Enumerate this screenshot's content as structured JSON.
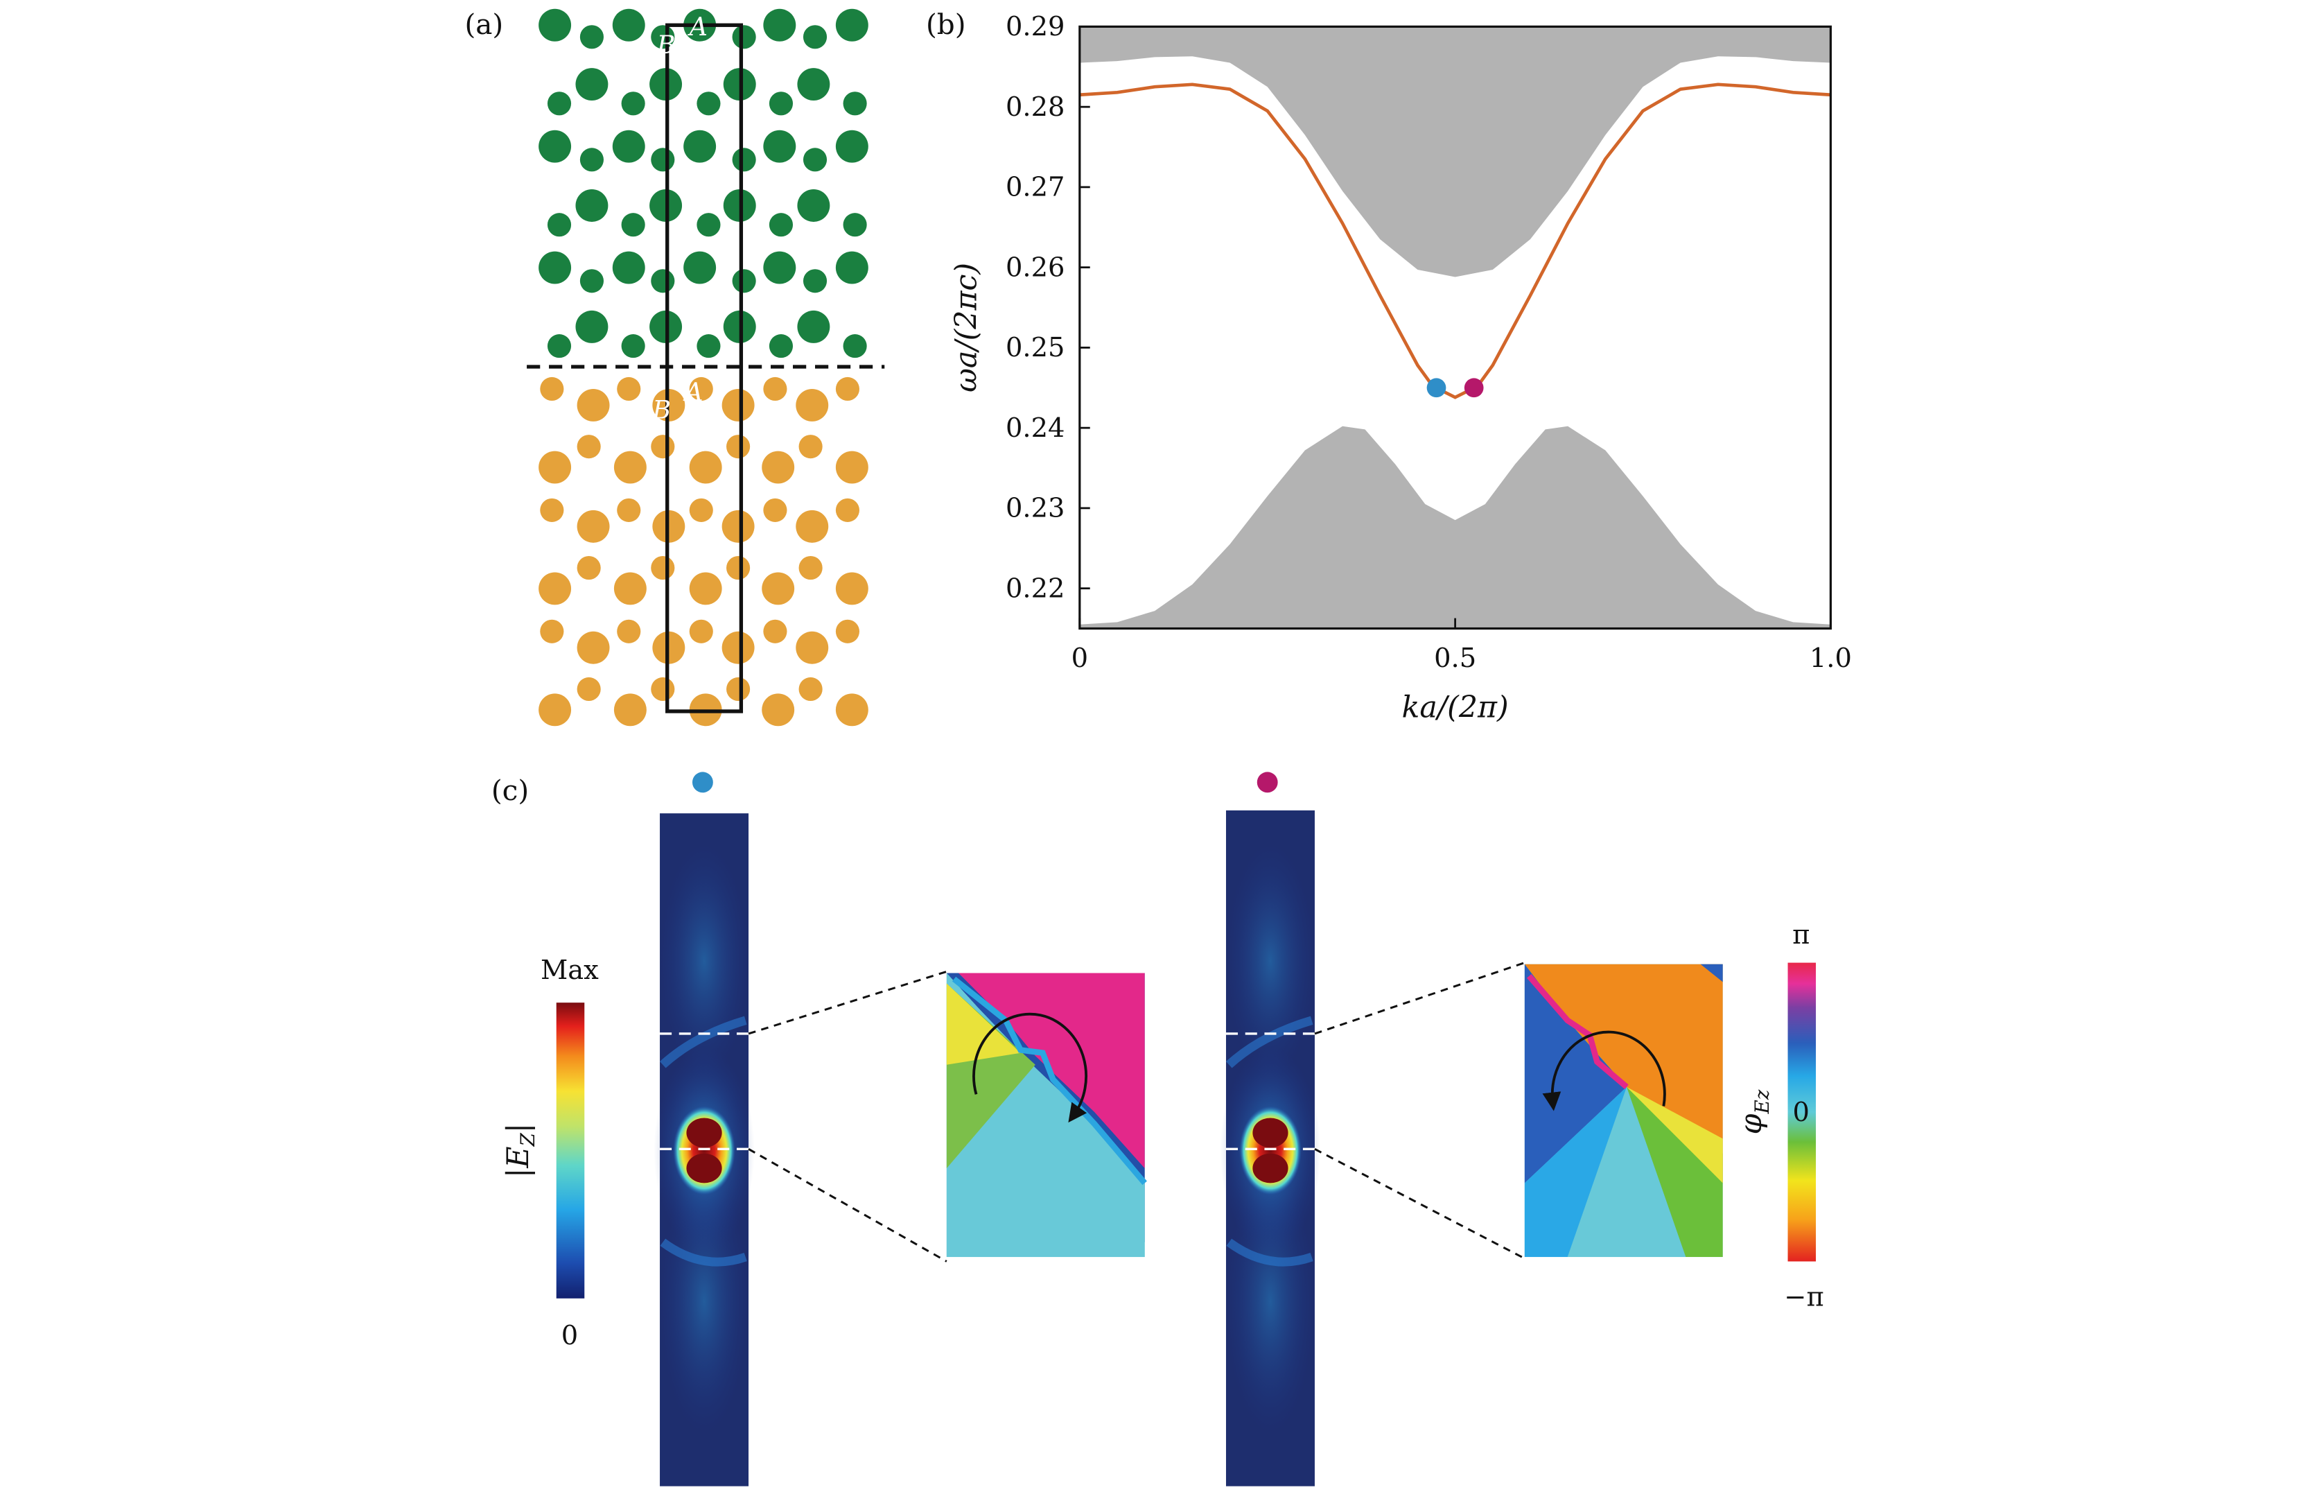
{
  "panel_labels": {
    "a": "(a)",
    "b": "(b)",
    "c": "(c)"
  },
  "panel_a": {
    "site_label_a": "A",
    "site_label_b": "B",
    "upper_color": "#1a8040",
    "lower_color": "#e5a23a"
  },
  "chart_data": {
    "type": "line",
    "title": "",
    "xlabel": "ka/(2π)",
    "ylabel": "ωa/(2πc)",
    "xlim": [
      0,
      1
    ],
    "ylim": [
      0.215,
      0.29
    ],
    "xticks": [
      {
        "value": 0,
        "label": "0"
      },
      {
        "value": 0.5,
        "label": "0.5"
      },
      {
        "value": 1.0,
        "label": "1.0"
      }
    ],
    "yticks": [
      {
        "value": 0.22,
        "label": "0.22"
      },
      {
        "value": 0.23,
        "label": "0.23"
      },
      {
        "value": 0.24,
        "label": "0.24"
      },
      {
        "value": 0.25,
        "label": "0.25"
      },
      {
        "value": 0.26,
        "label": "0.26"
      },
      {
        "value": 0.27,
        "label": "0.27"
      },
      {
        "value": 0.28,
        "label": "0.28"
      },
      {
        "value": 0.29,
        "label": "0.29"
      }
    ],
    "upper_bulk_lower_edge": [
      [
        0,
        0.2855
      ],
      [
        0.05,
        0.2857
      ],
      [
        0.1,
        0.2862
      ],
      [
        0.15,
        0.2863
      ],
      [
        0.2,
        0.2855
      ],
      [
        0.25,
        0.2825
      ],
      [
        0.3,
        0.2765
      ],
      [
        0.35,
        0.2695
      ],
      [
        0.4,
        0.2635
      ],
      [
        0.45,
        0.2597
      ],
      [
        0.5,
        0.2588
      ],
      [
        0.55,
        0.2597
      ],
      [
        0.6,
        0.2635
      ],
      [
        0.65,
        0.2695
      ],
      [
        0.7,
        0.2765
      ],
      [
        0.75,
        0.2825
      ],
      [
        0.8,
        0.2855
      ],
      [
        0.85,
        0.2863
      ],
      [
        0.9,
        0.2862
      ],
      [
        0.95,
        0.2857
      ],
      [
        1.0,
        0.2855
      ]
    ],
    "lower_bulk_upper_edge": [
      [
        0,
        0.2155
      ],
      [
        0.05,
        0.2158
      ],
      [
        0.1,
        0.2172
      ],
      [
        0.15,
        0.2205
      ],
      [
        0.2,
        0.2255
      ],
      [
        0.25,
        0.2315
      ],
      [
        0.3,
        0.2372
      ],
      [
        0.35,
        0.2402
      ],
      [
        0.38,
        0.2398
      ],
      [
        0.42,
        0.2355
      ],
      [
        0.46,
        0.2305
      ],
      [
        0.5,
        0.2285
      ],
      [
        0.54,
        0.2305
      ],
      [
        0.58,
        0.2355
      ],
      [
        0.62,
        0.2398
      ],
      [
        0.65,
        0.2402
      ],
      [
        0.7,
        0.2372
      ],
      [
        0.75,
        0.2315
      ],
      [
        0.8,
        0.2255
      ],
      [
        0.85,
        0.2205
      ],
      [
        0.9,
        0.2172
      ],
      [
        0.95,
        0.2158
      ],
      [
        1.0,
        0.2155
      ]
    ],
    "series": [
      {
        "name": "edge state",
        "color": "#d2662a",
        "points": [
          [
            0,
            0.2815
          ],
          [
            0.05,
            0.2818
          ],
          [
            0.1,
            0.2825
          ],
          [
            0.15,
            0.2828
          ],
          [
            0.2,
            0.2822
          ],
          [
            0.25,
            0.2795
          ],
          [
            0.3,
            0.2735
          ],
          [
            0.35,
            0.2655
          ],
          [
            0.4,
            0.2565
          ],
          [
            0.45,
            0.2478
          ],
          [
            0.47,
            0.2452
          ],
          [
            0.5,
            0.2438
          ],
          [
            0.53,
            0.2452
          ],
          [
            0.55,
            0.2478
          ],
          [
            0.6,
            0.2565
          ],
          [
            0.65,
            0.2655
          ],
          [
            0.7,
            0.2735
          ],
          [
            0.75,
            0.2795
          ],
          [
            0.8,
            0.2822
          ],
          [
            0.85,
            0.2828
          ],
          [
            0.9,
            0.2825
          ],
          [
            0.95,
            0.2818
          ],
          [
            1.0,
            0.2815
          ]
        ]
      }
    ],
    "markers": [
      {
        "name": "blue point",
        "x": 0.475,
        "y": 0.245,
        "color": "#2f8ec8"
      },
      {
        "name": "magenta point",
        "x": 0.525,
        "y": 0.245,
        "color": "#b5186a"
      }
    ],
    "bulk_color": "#b3b3b3"
  },
  "panel_c": {
    "colorbar_amplitude": {
      "label": "|E_Z|",
      "label_main": "|E",
      "label_sub": "Z",
      "max_label": "Max",
      "min_label": "0"
    },
    "colorbar_phase": {
      "label": "φ_Ez",
      "label_main": "φ",
      "label_sub": "Ez",
      "max_label": "π",
      "mid_label": "0",
      "min_label": "−π"
    },
    "left_mode_color": "#2f8ec8",
    "right_mode_color": "#b5186a"
  }
}
